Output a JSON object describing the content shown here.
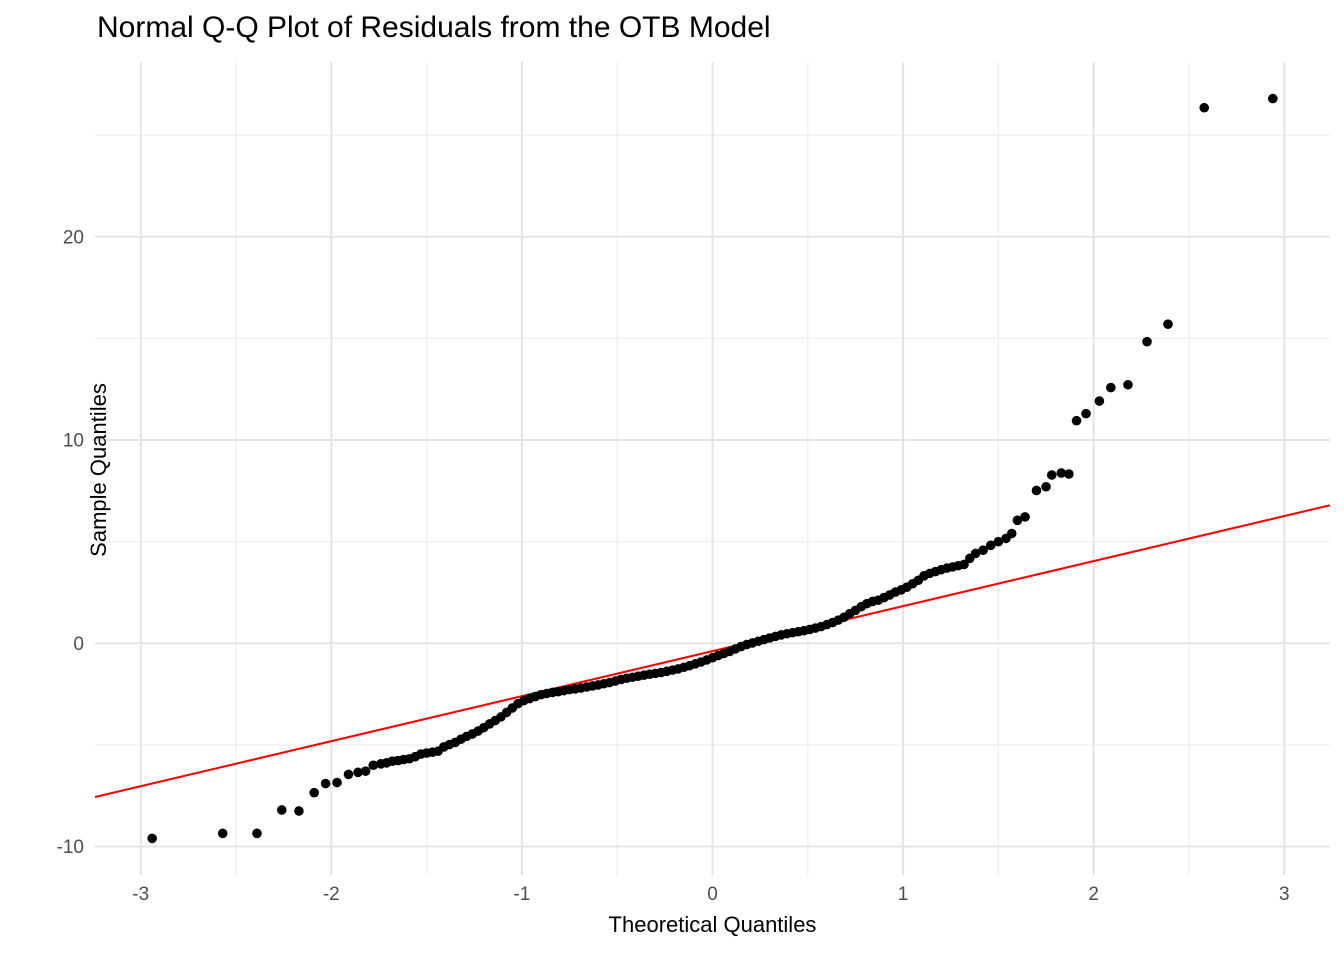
{
  "title": "Normal Q-Q Plot of Residuals from the OTB Model",
  "colors": {
    "background": "#FFFFFF",
    "grid_major": "#E4E4E4",
    "grid_minor": "#EFEFEF",
    "tick_label": "#4D4D4D",
    "axis_title": "#000000",
    "point": "#000000",
    "reference_line": "#FF0000"
  },
  "chart_data": {
    "type": "scatter",
    "title": "Normal Q-Q Plot of Residuals from the OTB Model",
    "xlabel": "Theoretical Quantiles",
    "ylabel": "Sample Quantiles",
    "xlim": [
      -3.24,
      3.24
    ],
    "ylim": [
      -11.4,
      28.6
    ],
    "x_ticks": [
      -3,
      -2,
      -1,
      0,
      1,
      2,
      3
    ],
    "y_ticks": [
      -10,
      0,
      10,
      20
    ],
    "x_minor_ticks": [
      -2.5,
      -1.5,
      -0.5,
      0.5,
      1.5,
      2.5
    ],
    "y_minor_ticks": [
      -5,
      5,
      15,
      25
    ],
    "grid": true,
    "legend_position": "none",
    "point_radius": 4.8,
    "reference_line": {
      "slope": 2.215,
      "intercept": -0.385,
      "x_span": [
        -3.24,
        3.24
      ]
    },
    "points": [
      [
        -2.94,
        -9.6
      ],
      [
        -2.57,
        -9.35
      ],
      [
        -2.39,
        -9.35
      ],
      [
        -2.26,
        -8.2
      ],
      [
        -2.17,
        -8.25
      ],
      [
        -2.09,
        -7.35
      ],
      [
        -2.03,
        -6.9
      ],
      [
        -1.97,
        -6.85
      ],
      [
        -1.91,
        -6.45
      ],
      [
        -1.86,
        -6.35
      ],
      [
        -1.82,
        -6.29
      ],
      [
        -1.78,
        -6.0
      ],
      [
        -1.74,
        -5.93
      ],
      [
        -1.71,
        -5.88
      ],
      [
        -1.68,
        -5.8
      ],
      [
        -1.65,
        -5.77
      ],
      [
        -1.62,
        -5.72
      ],
      [
        -1.59,
        -5.68
      ],
      [
        -1.56,
        -5.58
      ],
      [
        -1.53,
        -5.45
      ],
      [
        -1.5,
        -5.4
      ],
      [
        -1.47,
        -5.36
      ],
      [
        -1.44,
        -5.31
      ],
      [
        -1.41,
        -5.1
      ],
      [
        -1.38,
        -4.98
      ],
      [
        -1.35,
        -4.88
      ],
      [
        -1.32,
        -4.72
      ],
      [
        -1.29,
        -4.58
      ],
      [
        -1.26,
        -4.46
      ],
      [
        -1.23,
        -4.32
      ],
      [
        -1.2,
        -4.15
      ],
      [
        -1.17,
        -3.97
      ],
      [
        -1.14,
        -3.8
      ],
      [
        -1.11,
        -3.62
      ],
      [
        -1.08,
        -3.4
      ],
      [
        -1.05,
        -3.18
      ],
      [
        -1.02,
        -2.97
      ],
      [
        -0.99,
        -2.82
      ],
      [
        -0.96,
        -2.72
      ],
      [
        -0.93,
        -2.62
      ],
      [
        -0.9,
        -2.53
      ],
      [
        -0.87,
        -2.47
      ],
      [
        -0.84,
        -2.42
      ],
      [
        -0.81,
        -2.38
      ],
      [
        -0.78,
        -2.33
      ],
      [
        -0.75,
        -2.28
      ],
      [
        -0.72,
        -2.24
      ],
      [
        -0.69,
        -2.2
      ],
      [
        -0.66,
        -2.15
      ],
      [
        -0.63,
        -2.1
      ],
      [
        -0.6,
        -2.05
      ],
      [
        -0.57,
        -1.99
      ],
      [
        -0.54,
        -1.93
      ],
      [
        -0.51,
        -1.86
      ],
      [
        -0.48,
        -1.78
      ],
      [
        -0.45,
        -1.72
      ],
      [
        -0.42,
        -1.67
      ],
      [
        -0.39,
        -1.62
      ],
      [
        -0.36,
        -1.57
      ],
      [
        -0.33,
        -1.52
      ],
      [
        -0.3,
        -1.48
      ],
      [
        -0.27,
        -1.44
      ],
      [
        -0.24,
        -1.38
      ],
      [
        -0.21,
        -1.32
      ],
      [
        -0.18,
        -1.26
      ],
      [
        -0.15,
        -1.18
      ],
      [
        -0.12,
        -1.1
      ],
      [
        -0.09,
        -1.01
      ],
      [
        -0.06,
        -0.92
      ],
      [
        -0.03,
        -0.82
      ],
      [
        0.0,
        -0.71
      ],
      [
        0.03,
        -0.6
      ],
      [
        0.06,
        -0.5
      ],
      [
        0.09,
        -0.4
      ],
      [
        0.12,
        -0.28
      ],
      [
        0.15,
        -0.16
      ],
      [
        0.18,
        -0.06
      ],
      [
        0.21,
        0.02
      ],
      [
        0.24,
        0.1
      ],
      [
        0.27,
        0.18
      ],
      [
        0.3,
        0.26
      ],
      [
        0.33,
        0.34
      ],
      [
        0.36,
        0.41
      ],
      [
        0.39,
        0.47
      ],
      [
        0.42,
        0.52
      ],
      [
        0.45,
        0.57
      ],
      [
        0.48,
        0.62
      ],
      [
        0.51,
        0.68
      ],
      [
        0.54,
        0.75
      ],
      [
        0.57,
        0.82
      ],
      [
        0.6,
        0.92
      ],
      [
        0.63,
        1.02
      ],
      [
        0.66,
        1.14
      ],
      [
        0.69,
        1.28
      ],
      [
        0.72,
        1.46
      ],
      [
        0.75,
        1.62
      ],
      [
        0.78,
        1.8
      ],
      [
        0.81,
        1.95
      ],
      [
        0.84,
        2.06
      ],
      [
        0.87,
        2.12
      ],
      [
        0.9,
        2.25
      ],
      [
        0.93,
        2.38
      ],
      [
        0.96,
        2.52
      ],
      [
        0.99,
        2.63
      ],
      [
        1.02,
        2.76
      ],
      [
        1.05,
        2.93
      ],
      [
        1.08,
        3.1
      ],
      [
        1.11,
        3.32
      ],
      [
        1.14,
        3.44
      ],
      [
        1.17,
        3.53
      ],
      [
        1.2,
        3.62
      ],
      [
        1.23,
        3.7
      ],
      [
        1.26,
        3.76
      ],
      [
        1.29,
        3.82
      ],
      [
        1.32,
        3.88
      ],
      [
        1.35,
        4.18
      ],
      [
        1.38,
        4.42
      ],
      [
        1.42,
        4.58
      ],
      [
        1.46,
        4.82
      ],
      [
        1.5,
        5.0
      ],
      [
        1.54,
        5.16
      ],
      [
        1.57,
        5.4
      ],
      [
        1.6,
        6.05
      ],
      [
        1.64,
        6.22
      ],
      [
        1.7,
        7.52
      ],
      [
        1.75,
        7.7
      ],
      [
        1.78,
        8.28
      ],
      [
        1.83,
        8.38
      ],
      [
        1.87,
        8.33
      ],
      [
        1.91,
        10.95
      ],
      [
        1.96,
        11.3
      ],
      [
        2.03,
        11.92
      ],
      [
        2.09,
        12.58
      ],
      [
        2.18,
        12.72
      ],
      [
        2.28,
        14.84
      ],
      [
        2.39,
        15.7
      ],
      [
        2.58,
        26.35
      ],
      [
        2.94,
        26.8
      ]
    ]
  }
}
